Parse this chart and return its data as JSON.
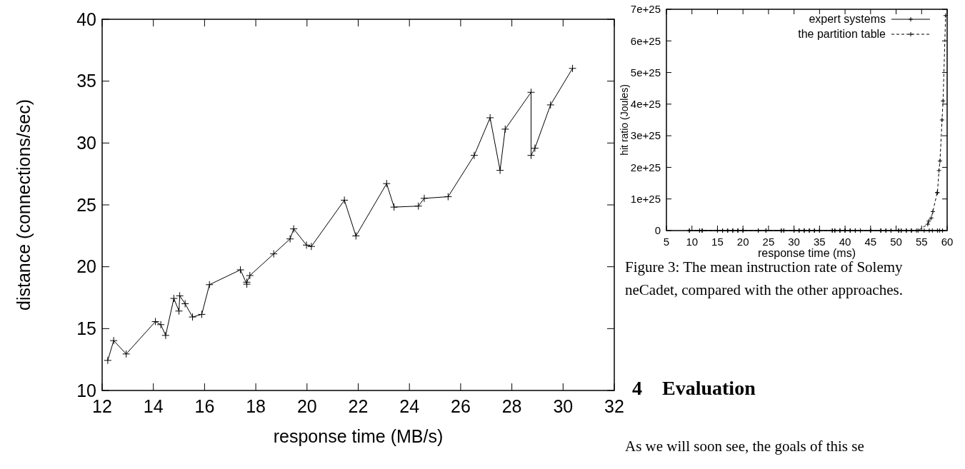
{
  "chart_data": [
    {
      "type": "line",
      "xlabel": "response time (MB/s)",
      "ylabel": "distance (connections/sec)",
      "xlim": [
        12,
        32
      ],
      "ylim": [
        10,
        40
      ],
      "xticks": [
        12,
        14,
        16,
        18,
        20,
        22,
        24,
        26,
        28,
        30,
        32
      ],
      "yticks": [
        10,
        15,
        20,
        25,
        30,
        35,
        40
      ],
      "marker": "cross",
      "legend": false,
      "grid": false,
      "series": [
        {
          "color": "#000000",
          "x": [
            12.22,
            12.45,
            12.94,
            14.08,
            14.29,
            14.48,
            14.8,
            15.0,
            15.03,
            15.24,
            15.53,
            15.89,
            16.19,
            17.4,
            17.65,
            17.65,
            17.77,
            18.7,
            19.34,
            19.48,
            19.98,
            20.17,
            21.46,
            21.91,
            23.11,
            23.4,
            24.35,
            24.58,
            25.51,
            26.53,
            27.15,
            27.54,
            27.74,
            28.75,
            28.75,
            28.9,
            29.51,
            30.37
          ],
          "values": [
            12.43,
            14.03,
            12.95,
            15.57,
            15.32,
            14.45,
            17.44,
            16.42,
            17.65,
            17.01,
            15.94,
            16.15,
            18.55,
            19.75,
            18.59,
            18.75,
            19.29,
            21.04,
            22.25,
            23.06,
            21.75,
            21.64,
            25.38,
            22.49,
            26.72,
            24.82,
            24.9,
            25.53,
            25.66,
            29.0,
            32.04,
            27.79,
            31.12,
            34.1,
            29.0,
            29.58,
            33.08,
            36.03
          ]
        }
      ]
    },
    {
      "type": "line",
      "xlabel": "response time (ms)",
      "ylabel": "hit ratio (Joules)",
      "xlim": [
        5,
        60
      ],
      "ylim": [
        0,
        7e+25
      ],
      "xticks": [
        5,
        10,
        15,
        20,
        25,
        30,
        35,
        40,
        45,
        50,
        55,
        60
      ],
      "yticks": [
        0,
        {
          "value": 1e+25,
          "label": "1e+25"
        },
        {
          "value": 2e+25,
          "label": "2e+25"
        },
        {
          "value": 3e+25,
          "label": "3e+25"
        },
        {
          "value": 4e+25,
          "label": "4e+25"
        },
        {
          "value": 5e+25,
          "label": "5e+25"
        },
        {
          "value": 6e+25,
          "label": "6e+25"
        },
        {
          "value": 7e+25,
          "label": "7e+25"
        }
      ],
      "legend": "top right",
      "grid": false,
      "annotations": [
        "Figure 3:    The mean instruction rate of Solemy neCadet, compared with the other approaches.",
        "4    Evaluation",
        "As we will soon see, the goals of this se"
      ],
      "series": [
        {
          "name": "expert systems",
          "color": "#000000",
          "marker": "cross",
          "line_style": "solid",
          "x": [
            9.5,
            11.5,
            12,
            15,
            16,
            17,
            18,
            19,
            20,
            23,
            24.5,
            27.5,
            28,
            30,
            31,
            32,
            33,
            34,
            35,
            37.5,
            38,
            39,
            40,
            41,
            42,
            43,
            45,
            47,
            48,
            49,
            50.5,
            51,
            52,
            53,
            54,
            55.5,
            56.5,
            57.1,
            58.1,
            58.5,
            59.1
          ],
          "values": [
            0,
            0,
            0,
            0,
            0,
            0,
            0,
            0,
            0,
            0,
            0,
            0,
            0,
            0,
            0,
            0,
            0,
            0,
            0,
            0,
            0,
            0,
            0,
            0,
            0,
            0,
            0,
            0,
            0,
            0,
            0,
            0,
            0,
            0,
            0,
            0,
            0,
            0,
            0,
            0,
            0
          ]
        },
        {
          "name": "the partition table",
          "color": "#000000",
          "marker": "cross",
          "line_style": "dashed",
          "x": [
            9.5,
            11.5,
            12,
            15,
            16,
            17,
            18,
            19,
            20,
            23,
            24.5,
            27.5,
            28,
            30,
            31,
            32,
            33,
            34,
            35,
            37.5,
            38,
            39,
            40,
            41,
            42,
            43,
            45,
            47,
            48,
            49,
            50.5,
            51,
            52,
            53,
            54.3,
            56.2,
            56.4,
            56.9,
            57.2,
            58.05,
            58.1,
            58.4,
            58.6,
            59.0,
            59.2,
            59.7
          ],
          "values": [
            0,
            0,
            0,
            0,
            0,
            0,
            0,
            0,
            0,
            0,
            0,
            0,
            0,
            0,
            0,
            0,
            0,
            0,
            0,
            0,
            0,
            0,
            0,
            0,
            0,
            0,
            0,
            0,
            0,
            0,
            0,
            0,
            0,
            0,
            0,
            2e+24,
            3e+24,
            4e+24,
            6e+24,
            1.2e+25,
            1.2e+25,
            1.9e+25,
            2.2e+25,
            3.5e+25,
            4.1e+25,
            6.8e+25
          ]
        }
      ]
    }
  ]
}
